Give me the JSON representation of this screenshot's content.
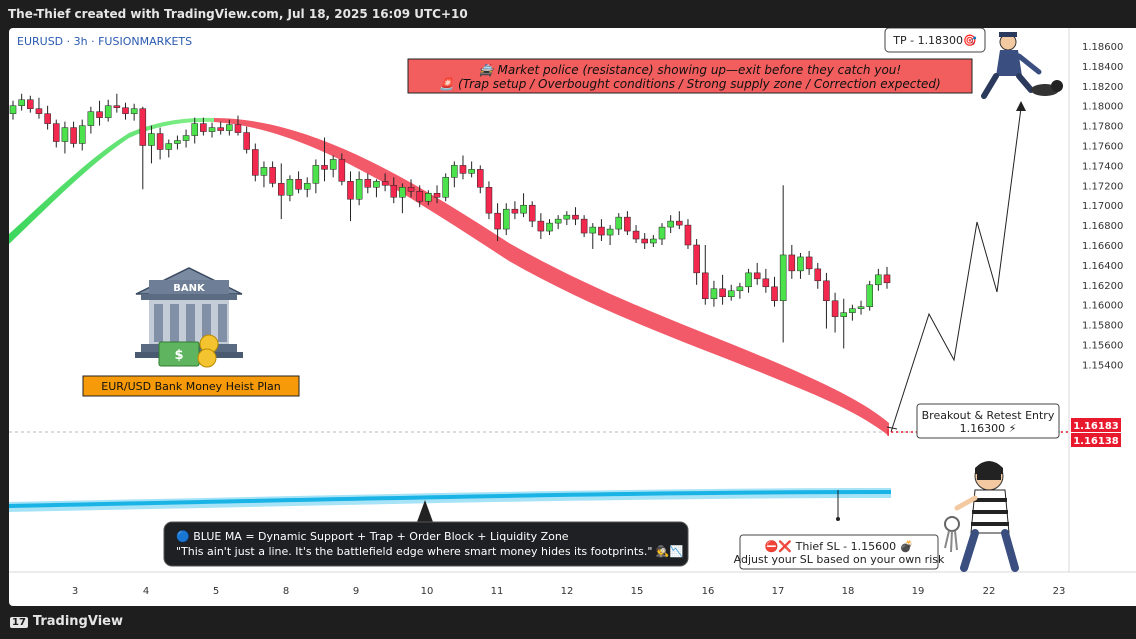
{
  "header": {
    "text": "The-Thief created with TradingView.com, Jul 18, 2025 16:09 UTC+10"
  },
  "footer": {
    "logo_text": "TradingView"
  },
  "chart_data": {
    "type": "candlestick",
    "symbol": "EURUSD · 3h · FUSIONMARKETS",
    "x_ticks": [
      "3",
      "4",
      "5",
      "8",
      "9",
      "10",
      "11",
      "12",
      "15",
      "16",
      "17",
      "18",
      "19",
      "22",
      "23"
    ],
    "y_ticks": [
      "1.18600",
      "1.18400",
      "1.18200",
      "1.18000",
      "1.17800",
      "1.17600",
      "1.17400",
      "1.17200",
      "1.17000",
      "1.16800",
      "1.16600",
      "1.16400",
      "1.16200",
      "1.16000",
      "1.15800",
      "1.15600",
      "1.15400"
    ],
    "price_labels": {
      "upper": "1.16183",
      "lower": "1.16138"
    },
    "ylim": [
      1.1525,
      1.1875
    ],
    "colors": {
      "up": "#4ce24c",
      "down": "#f2284e",
      "red_ma": "#f25a6a",
      "green_ma": "#6fee6f",
      "blue_ma": "#19b3e6",
      "accent": "#f79a0a"
    },
    "annotations": {
      "tp": "TP - 1.18300🎯",
      "banner_line1": "🚔 Market police (resistance) showing up—exit before they catch you!",
      "banner_line2": "🚨 (Trap setup / Overbought conditions / Strong supply zone / Correction expected)",
      "bank_sign": "BANK",
      "heist_plan": "EUR/USD Bank Money Heist Plan",
      "entry_line1": "Breakout & Retest Entry",
      "entry_line2": "1.16300 ⚡",
      "blue_ma_line1": "🔵 BLUE MA = Dynamic Support + Trap + Order Block + Liquidity Zone",
      "blue_ma_line2": "\"This ain't just a line. It's the battlefield edge where smart money hides its footprints.\" 🕵️📉",
      "sl_line1": "⛔❌ Thief SL - 1.15600 💣",
      "sl_line2": "Adjust your SL based on your own risk"
    },
    "candles": [
      [
        1.1792,
        1.1805,
        1.1786,
        1.18
      ],
      [
        1.18,
        1.1812,
        1.1795,
        1.1806
      ],
      [
        1.1806,
        1.181,
        1.1793,
        1.1797
      ],
      [
        1.1797,
        1.1808,
        1.1787,
        1.1792
      ],
      [
        1.1792,
        1.18,
        1.1776,
        1.1782
      ],
      [
        1.1782,
        1.1786,
        1.1758,
        1.1764
      ],
      [
        1.1764,
        1.1784,
        1.1752,
        1.1778
      ],
      [
        1.1778,
        1.1784,
        1.1758,
        1.1762
      ],
      [
        1.1762,
        1.1786,
        1.1755,
        1.178
      ],
      [
        1.178,
        1.1799,
        1.1772,
        1.1794
      ],
      [
        1.1794,
        1.1805,
        1.178,
        1.1788
      ],
      [
        1.1788,
        1.1806,
        1.1784,
        1.18
      ],
      [
        1.18,
        1.1812,
        1.1793,
        1.1798
      ],
      [
        1.1798,
        1.1803,
        1.1786,
        1.1792
      ],
      [
        1.1792,
        1.1802,
        1.1785,
        1.1797
      ],
      [
        1.1797,
        1.1799,
        1.1716,
        1.176
      ],
      [
        1.176,
        1.178,
        1.1742,
        1.1772
      ],
      [
        1.1772,
        1.1778,
        1.1746,
        1.1756
      ],
      [
        1.1756,
        1.1766,
        1.1748,
        1.1762
      ],
      [
        1.1762,
        1.177,
        1.1756,
        1.1765
      ],
      [
        1.1765,
        1.1776,
        1.1758,
        1.177
      ],
      [
        1.177,
        1.1788,
        1.1762,
        1.1782
      ],
      [
        1.1782,
        1.1788,
        1.177,
        1.1774
      ],
      [
        1.1774,
        1.1783,
        1.1768,
        1.1778
      ],
      [
        1.1778,
        1.1784,
        1.1771,
        1.1775
      ],
      [
        1.1775,
        1.1786,
        1.177,
        1.1781
      ],
      [
        1.1781,
        1.179,
        1.177,
        1.1773
      ],
      [
        1.1773,
        1.1779,
        1.1752,
        1.1756
      ],
      [
        1.1756,
        1.1762,
        1.1724,
        1.173
      ],
      [
        1.173,
        1.1744,
        1.1718,
        1.1738
      ],
      [
        1.1738,
        1.1744,
        1.1718,
        1.1722
      ],
      [
        1.1722,
        1.1742,
        1.1686,
        1.171
      ],
      [
        1.171,
        1.173,
        1.1704,
        1.1726
      ],
      [
        1.1726,
        1.1734,
        1.1712,
        1.1716
      ],
      [
        1.1716,
        1.1728,
        1.1708,
        1.1722
      ],
      [
        1.1722,
        1.1746,
        1.1712,
        1.174
      ],
      [
        1.174,
        1.1768,
        1.1724,
        1.1736
      ],
      [
        1.1736,
        1.175,
        1.1728,
        1.1746
      ],
      [
        1.1746,
        1.1752,
        1.172,
        1.1724
      ],
      [
        1.1724,
        1.1734,
        1.1684,
        1.1706
      ],
      [
        1.1706,
        1.1734,
        1.17,
        1.1726
      ],
      [
        1.1726,
        1.1732,
        1.1712,
        1.1718
      ],
      [
        1.1718,
        1.1726,
        1.1708,
        1.1724
      ],
      [
        1.1724,
        1.1732,
        1.1714,
        1.172
      ],
      [
        1.172,
        1.1728,
        1.1702,
        1.1708
      ],
      [
        1.1708,
        1.1722,
        1.1692,
        1.1718
      ],
      [
        1.1718,
        1.1726,
        1.1708,
        1.1714
      ],
      [
        1.1714,
        1.172,
        1.1698,
        1.1704
      ],
      [
        1.1704,
        1.1715,
        1.17,
        1.1712
      ],
      [
        1.1712,
        1.172,
        1.1702,
        1.1708
      ],
      [
        1.1708,
        1.1732,
        1.1704,
        1.1728
      ],
      [
        1.1728,
        1.1744,
        1.1718,
        1.174
      ],
      [
        1.174,
        1.175,
        1.1726,
        1.1732
      ],
      [
        1.1732,
        1.1744,
        1.1728,
        1.1736
      ],
      [
        1.1736,
        1.174,
        1.1712,
        1.1718
      ],
      [
        1.1718,
        1.1724,
        1.1686,
        1.1692
      ],
      [
        1.1692,
        1.1702,
        1.1664,
        1.1676
      ],
      [
        1.1676,
        1.1702,
        1.167,
        1.1696
      ],
      [
        1.1696,
        1.1704,
        1.1686,
        1.1692
      ],
      [
        1.1692,
        1.1712,
        1.1688,
        1.17
      ],
      [
        1.17,
        1.1704,
        1.1678,
        1.1684
      ],
      [
        1.1684,
        1.1692,
        1.1666,
        1.1674
      ],
      [
        1.1674,
        1.1686,
        1.167,
        1.1682
      ],
      [
        1.1682,
        1.169,
        1.1676,
        1.1686
      ],
      [
        1.1686,
        1.1694,
        1.168,
        1.169
      ],
      [
        1.169,
        1.1698,
        1.168,
        1.1686
      ],
      [
        1.1686,
        1.169,
        1.1668,
        1.1672
      ],
      [
        1.1672,
        1.1682,
        1.1656,
        1.1678
      ],
      [
        1.1678,
        1.1686,
        1.1664,
        1.167
      ],
      [
        1.167,
        1.168,
        1.166,
        1.1676
      ],
      [
        1.1676,
        1.1692,
        1.167,
        1.1688
      ],
      [
        1.1688,
        1.1694,
        1.167,
        1.1674
      ],
      [
        1.1674,
        1.168,
        1.1662,
        1.1666
      ],
      [
        1.1666,
        1.1672,
        1.1656,
        1.1662
      ],
      [
        1.1662,
        1.167,
        1.1658,
        1.1666
      ],
      [
        1.1666,
        1.1682,
        1.166,
        1.1678
      ],
      [
        1.1678,
        1.169,
        1.1672,
        1.1684
      ],
      [
        1.1684,
        1.1694,
        1.1676,
        1.168
      ],
      [
        1.168,
        1.1686,
        1.1656,
        1.166
      ],
      [
        1.166,
        1.1666,
        1.162,
        1.1632
      ],
      [
        1.1632,
        1.166,
        1.16,
        1.1606
      ],
      [
        1.1606,
        1.1624,
        1.1598,
        1.1616
      ],
      [
        1.1616,
        1.163,
        1.16,
        1.1608
      ],
      [
        1.1608,
        1.162,
        1.1604,
        1.1614
      ],
      [
        1.1614,
        1.1622,
        1.1606,
        1.1618
      ],
      [
        1.1618,
        1.1636,
        1.1612,
        1.1632
      ],
      [
        1.1632,
        1.1642,
        1.162,
        1.1626
      ],
      [
        1.1626,
        1.1636,
        1.1612,
        1.1618
      ],
      [
        1.1618,
        1.1628,
        1.1598,
        1.1604
      ],
      [
        1.1604,
        1.172,
        1.1562,
        1.165
      ],
      [
        1.165,
        1.166,
        1.1626,
        1.1634
      ],
      [
        1.1634,
        1.1652,
        1.1626,
        1.1648
      ],
      [
        1.1648,
        1.1654,
        1.163,
        1.1636
      ],
      [
        1.1636,
        1.1642,
        1.1616,
        1.1624
      ],
      [
        1.1624,
        1.1632,
        1.1576,
        1.1604
      ],
      [
        1.1604,
        1.1612,
        1.1572,
        1.1588
      ],
      [
        1.1588,
        1.1606,
        1.1556,
        1.1592
      ],
      [
        1.1592,
        1.16,
        1.1584,
        1.1596
      ],
      [
        1.1596,
        1.1604,
        1.159,
        1.1598
      ],
      [
        1.1598,
        1.1624,
        1.1594,
        1.162
      ],
      [
        1.162,
        1.1636,
        1.1614,
        1.163
      ],
      [
        1.163,
        1.1638,
        1.1616,
        1.1622
      ]
    ]
  }
}
